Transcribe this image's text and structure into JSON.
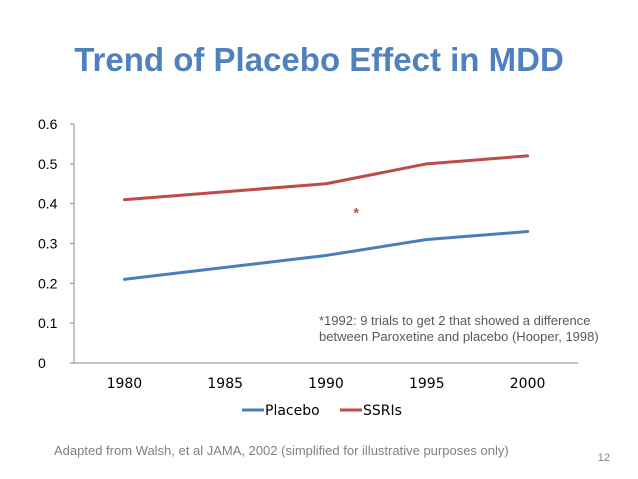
{
  "slide": {
    "title": "Trend of Placebo Effect in MDD",
    "annotation": "*1992: 9 trials to get 2 that showed a difference between Paroxetine  and placebo (Hooper, 1998)",
    "source": "Adapted from Walsh, et al JAMA, 2002 (simplified for illustrative purposes only)",
    "page_number": "12"
  },
  "colors": {
    "title": "#4f81bd",
    "placebo": "#4a7ebb",
    "ssris": "#be4b48",
    "axis": "#8c8c8c",
    "text": "#000000"
  },
  "chart_data": {
    "type": "line",
    "title": "",
    "xlabel": "",
    "ylabel": "",
    "categories": [
      "1980",
      "1985",
      "1990",
      "1995",
      "2000"
    ],
    "y_ticks": [
      "0",
      "0.1",
      "0.2",
      "0.3",
      "0.4",
      "0.5",
      "0.6"
    ],
    "ylim": [
      0,
      0.6
    ],
    "grid": false,
    "legend_position": "bottom",
    "series": [
      {
        "name": "Placebo",
        "values": [
          0.21,
          0.24,
          0.27,
          0.31,
          0.33
        ]
      },
      {
        "name": "SSRIs",
        "values": [
          0.41,
          0.43,
          0.45,
          0.5,
          0.52
        ]
      }
    ],
    "marker": {
      "label": "*",
      "x": 1991.5,
      "y": 0.38
    }
  }
}
